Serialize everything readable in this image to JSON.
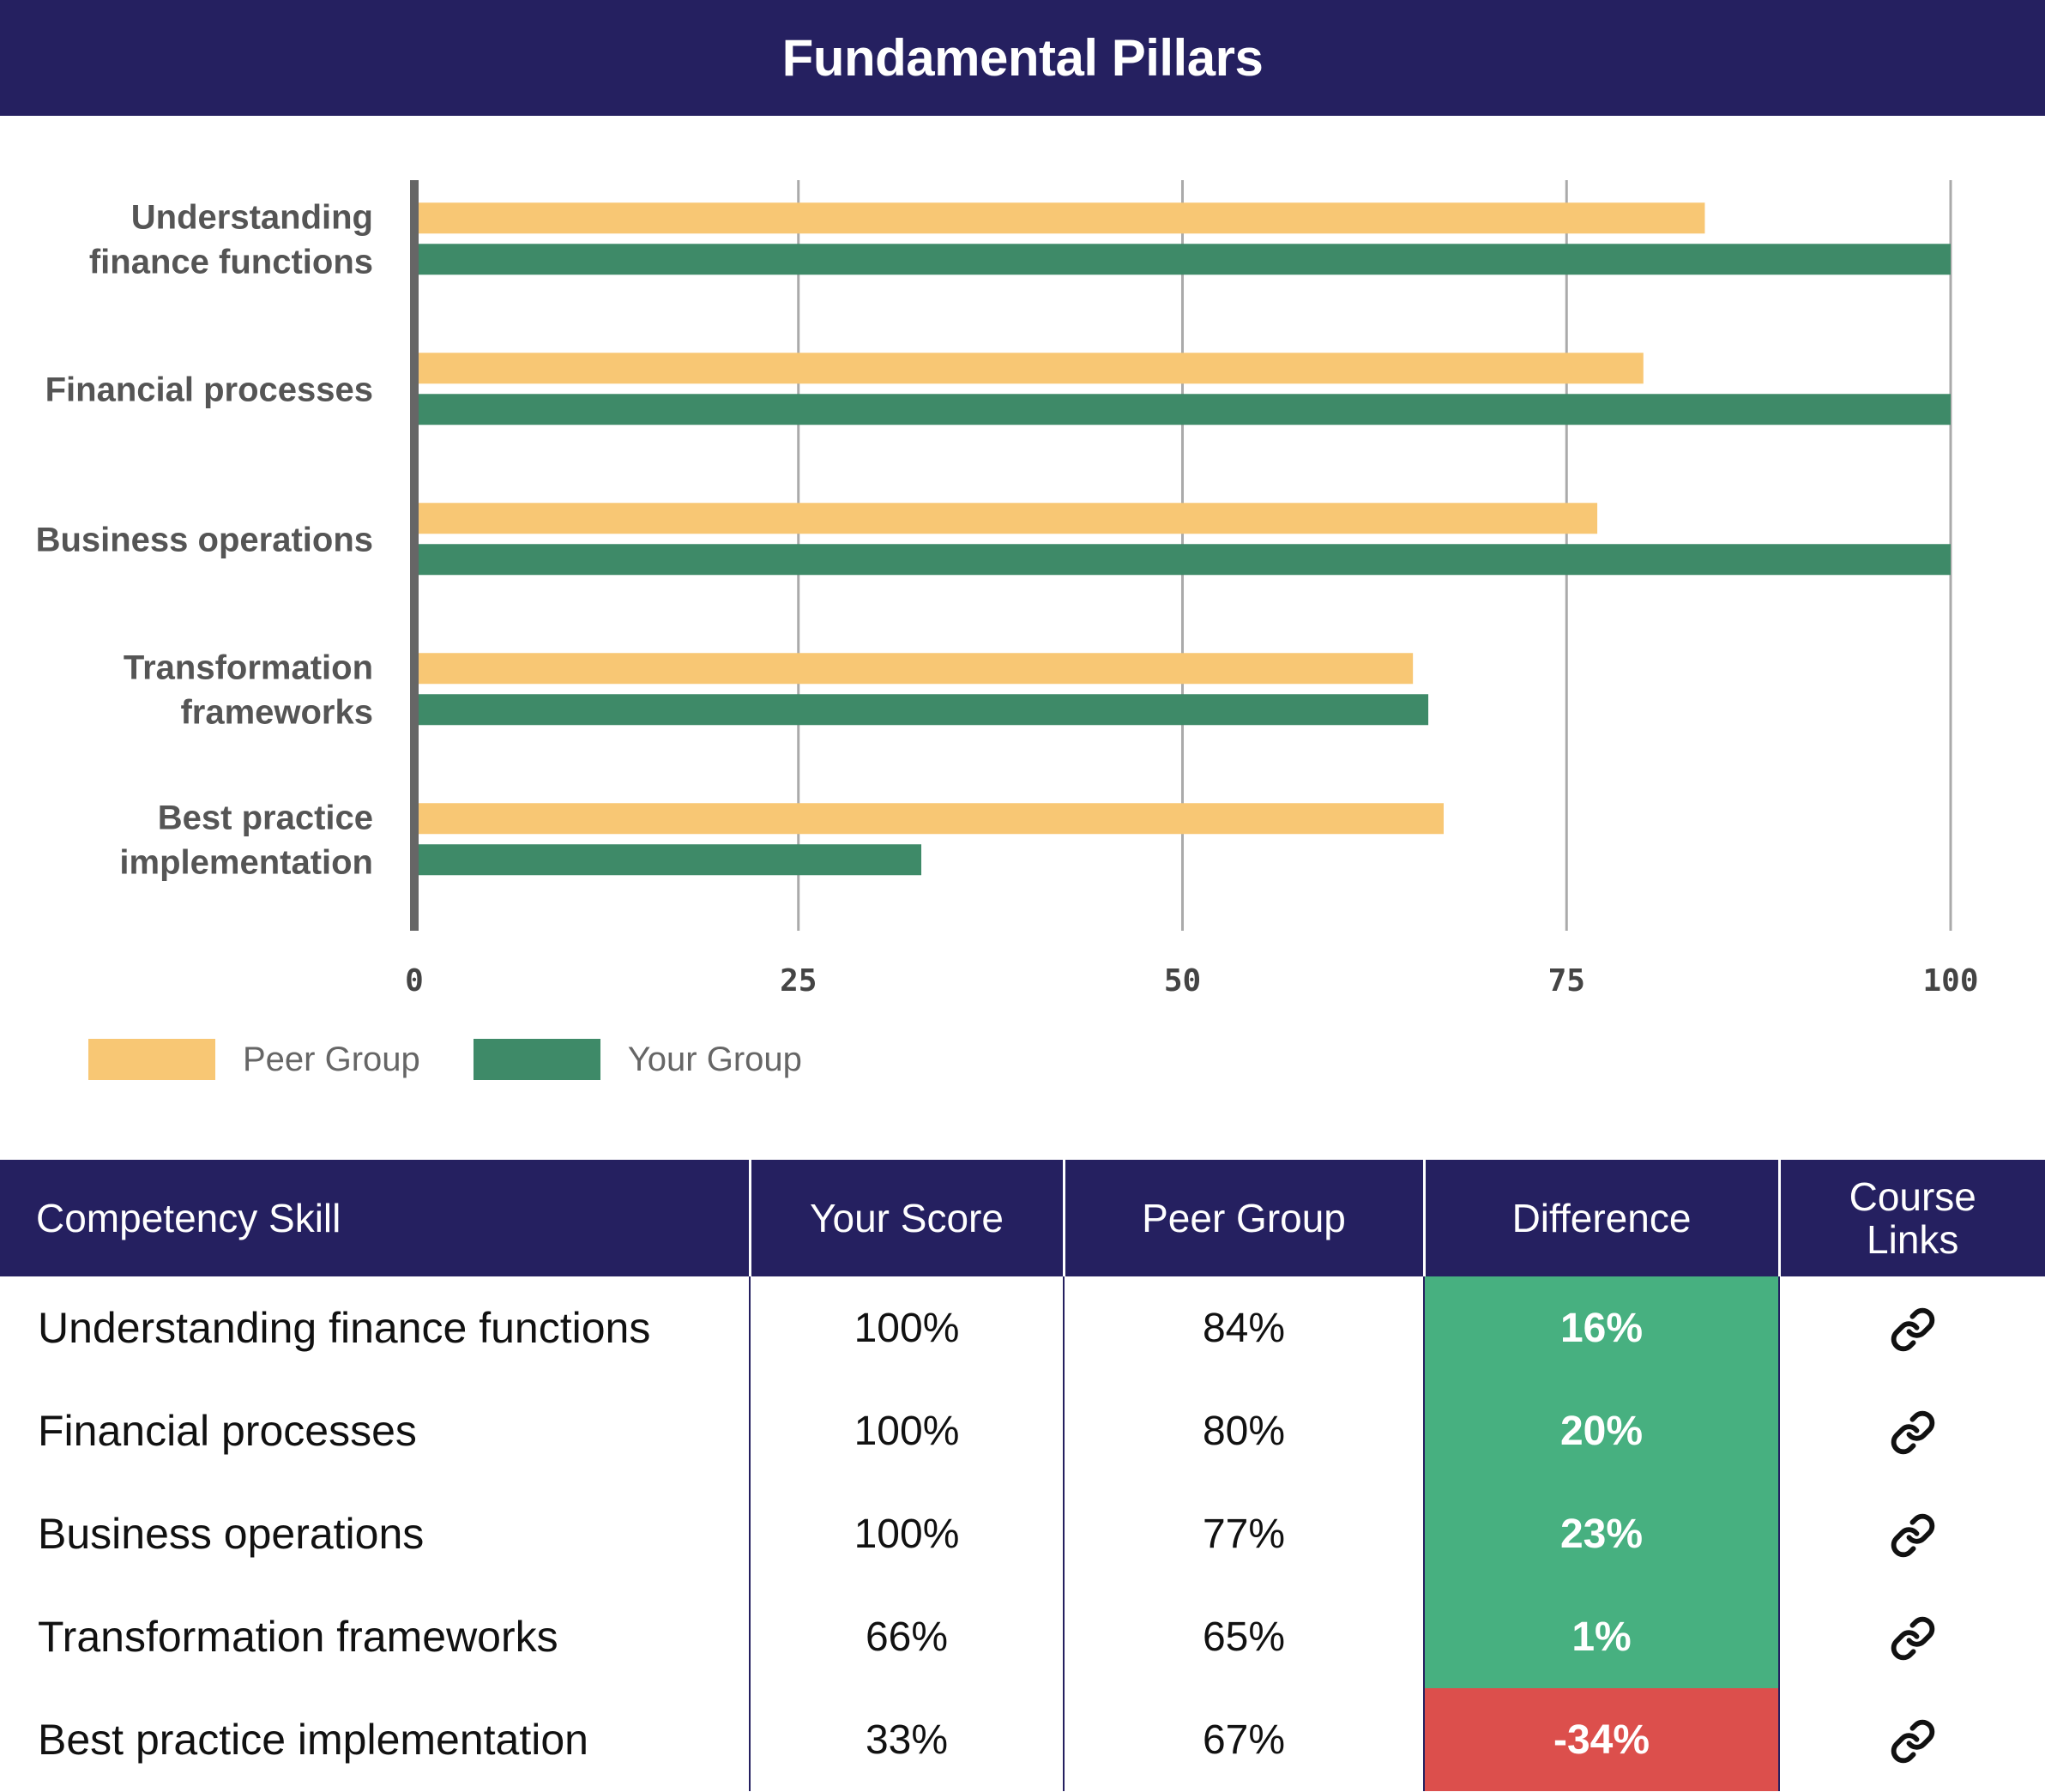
{
  "title": "Fundamental Pillars",
  "colors": {
    "header_bg": "#252060",
    "peer": "#f8c774",
    "your": "#3e8a68",
    "positive": "#47b080",
    "negative": "#dc4f4c",
    "grid": "#aaaaaa",
    "axis": "#666666"
  },
  "chart_data": {
    "type": "bar",
    "orientation": "horizontal",
    "categories": [
      "Understanding finance functions",
      "Financial processes",
      "Business operations",
      "Transformation frameworks",
      "Best practice implementation"
    ],
    "category_label_lines": [
      [
        "Understanding",
        "finance functions"
      ],
      [
        "Financial processes"
      ],
      [
        "Business operations"
      ],
      [
        "Transformation",
        "frameworks"
      ],
      [
        "Best practice",
        "implementation"
      ]
    ],
    "series": [
      {
        "name": "Peer Group",
        "values": [
          84,
          80,
          77,
          65,
          67
        ]
      },
      {
        "name": "Your Group",
        "values": [
          100,
          100,
          100,
          66,
          33
        ]
      }
    ],
    "xlim": [
      0,
      100
    ],
    "xticks": [
      0,
      25,
      50,
      75,
      100
    ],
    "grid": true,
    "legend_position": "bottom-left"
  },
  "legend": {
    "peer_label": "Peer Group",
    "your_label": "Your Group"
  },
  "table": {
    "headers": {
      "skill": "Competency Skill",
      "your_score": "Your Score",
      "peer_group": "Peer Group",
      "difference": "Difference",
      "course_links_line1": "Course",
      "course_links_line2": "Links"
    },
    "rows": [
      {
        "skill": "Understanding finance functions",
        "your_score": "100%",
        "peer": "84%",
        "diff": "16%",
        "diff_sign": "positive"
      },
      {
        "skill": "Financial processes",
        "your_score": "100%",
        "peer": "80%",
        "diff": "20%",
        "diff_sign": "positive"
      },
      {
        "skill": "Business operations",
        "your_score": "100%",
        "peer": "77%",
        "diff": "23%",
        "diff_sign": "positive"
      },
      {
        "skill": "Transformation frameworks",
        "your_score": "66%",
        "peer": "65%",
        "diff": "1%",
        "diff_sign": "positive"
      },
      {
        "skill": "Best practice implementation",
        "your_score": "33%",
        "peer": "67%",
        "diff": "-34%",
        "diff_sign": "negative"
      }
    ],
    "link_icon": "link-icon"
  }
}
